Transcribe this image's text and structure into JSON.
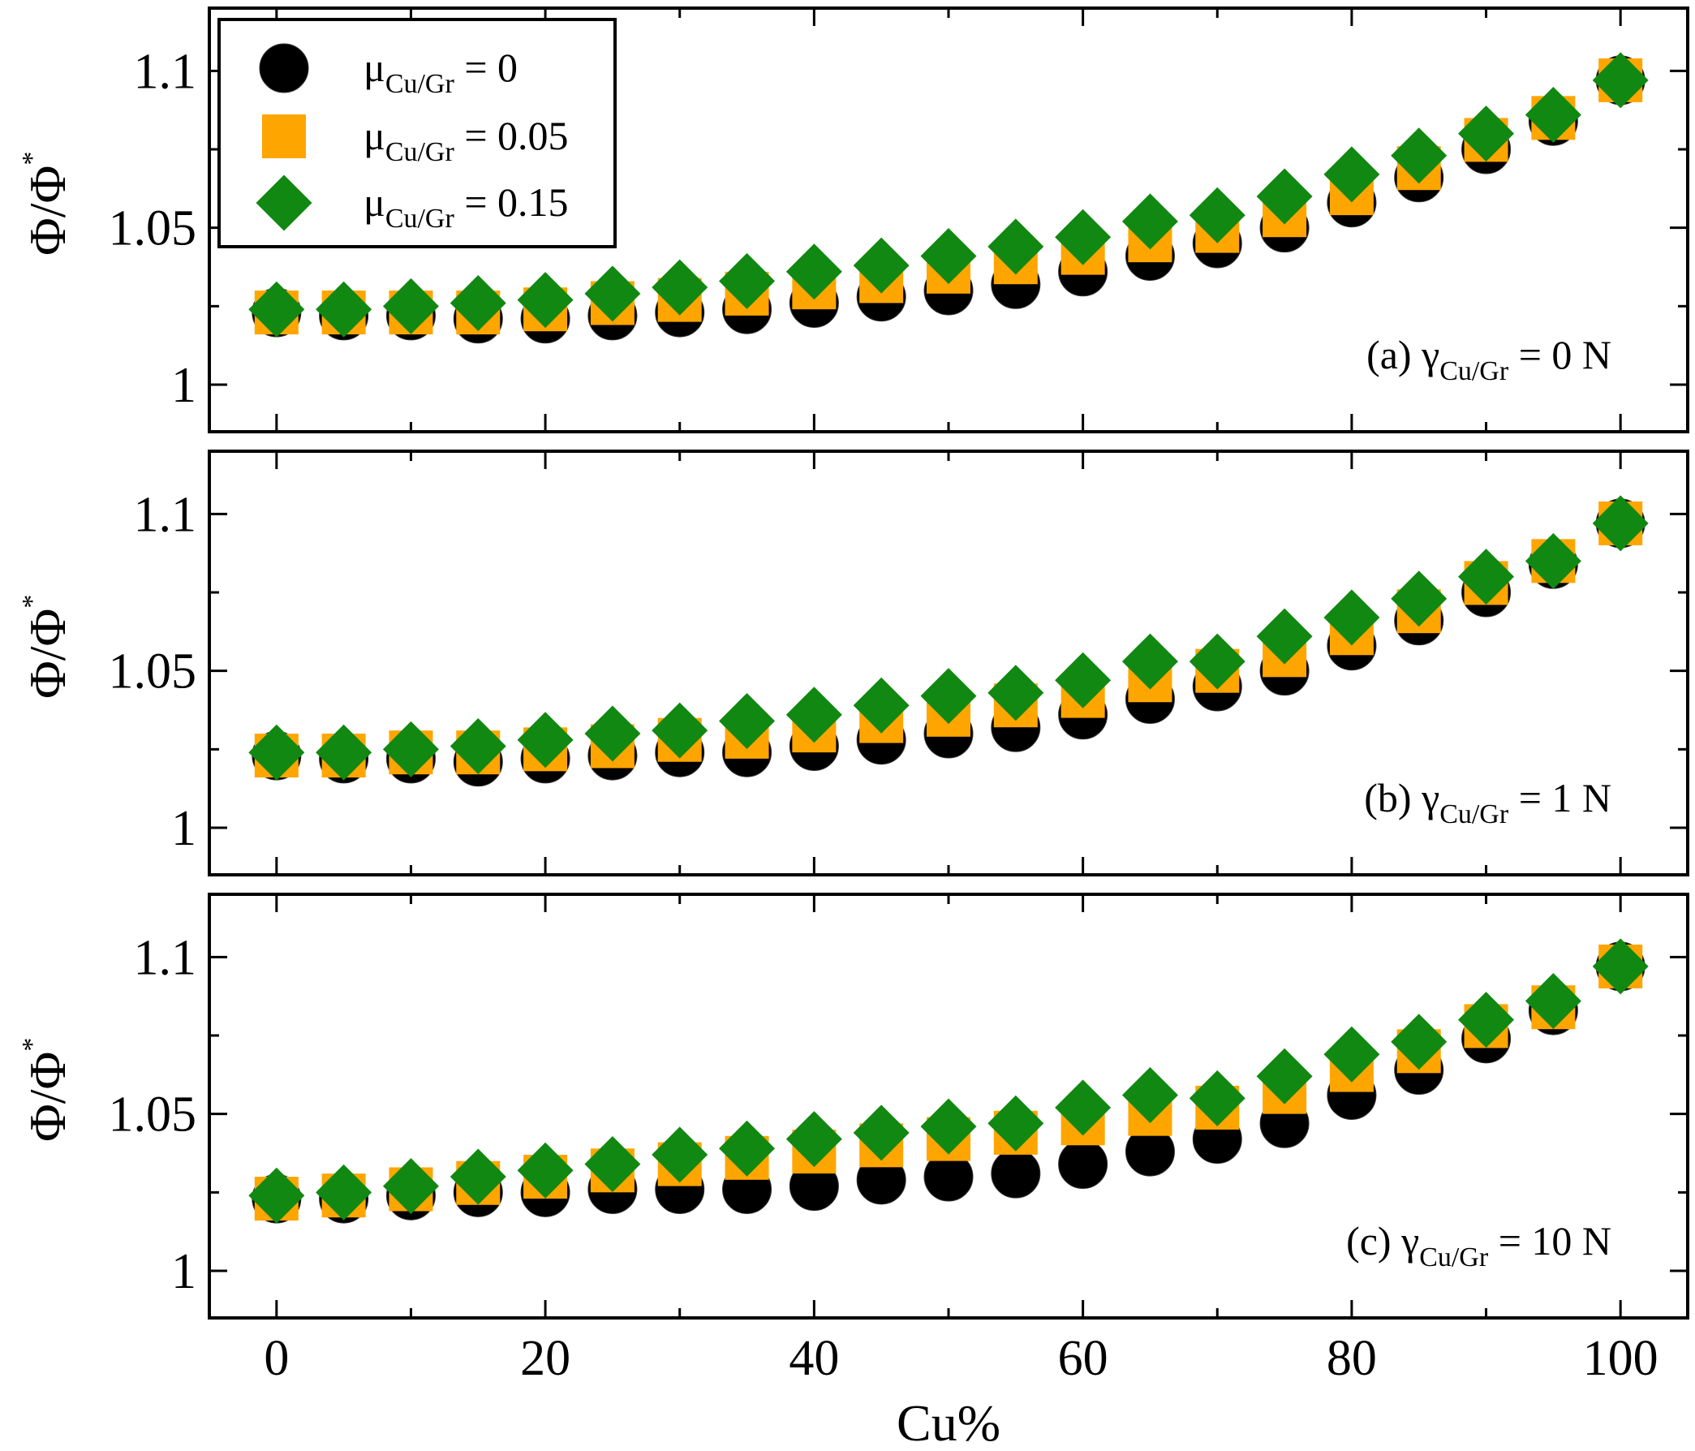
{
  "chart_data": {
    "type": "scatter",
    "x_label": "Cu%",
    "y_label": {
      "main": "Φ/Φ",
      "sup": "*"
    },
    "x_ticks": [
      "0",
      "20",
      "40",
      "60",
      "80",
      "100"
    ],
    "y_ticks": [
      "1",
      "1.05",
      "1.1"
    ],
    "xlim": [
      -5,
      105
    ],
    "ylim": [
      0.985,
      1.12
    ],
    "x": [
      0,
      5,
      10,
      15,
      20,
      25,
      30,
      35,
      40,
      45,
      50,
      55,
      60,
      65,
      70,
      75,
      80,
      85,
      90,
      95,
      100
    ],
    "legend": [
      {
        "label_main": "μ",
        "label_sub": "Cu/Gr",
        "label_rest": " = 0",
        "marker": "circle",
        "color": "#000000"
      },
      {
        "label_main": "μ",
        "label_sub": "Cu/Gr",
        "label_rest": " = 0.05",
        "marker": "square",
        "color": "#FFA500"
      },
      {
        "label_main": "μ",
        "label_sub": "Cu/Gr",
        "label_rest": " = 0.15",
        "marker": "diamond",
        "color": "#118811"
      }
    ],
    "panels": [
      {
        "annotation": {
          "prefix": "(a) γ",
          "sub": "Cu/Gr",
          "rest": " = 0 N"
        },
        "series": [
          {
            "name": "μCu/Gr = 0",
            "values": [
              1.023,
              1.022,
              1.022,
              1.021,
              1.021,
              1.022,
              1.023,
              1.024,
              1.026,
              1.028,
              1.03,
              1.032,
              1.036,
              1.041,
              1.045,
              1.05,
              1.058,
              1.066,
              1.075,
              1.084,
              1.097
            ]
          },
          {
            "name": "μCu/Gr = 0.05",
            "values": [
              1.023,
              1.023,
              1.023,
              1.023,
              1.024,
              1.026,
              1.027,
              1.029,
              1.031,
              1.033,
              1.036,
              1.039,
              1.042,
              1.046,
              1.049,
              1.054,
              1.061,
              1.069,
              1.078,
              1.085,
              1.097
            ]
          },
          {
            "name": "μCu/Gr = 0.15",
            "values": [
              1.024,
              1.024,
              1.025,
              1.026,
              1.027,
              1.029,
              1.031,
              1.033,
              1.036,
              1.038,
              1.041,
              1.044,
              1.047,
              1.052,
              1.054,
              1.06,
              1.067,
              1.073,
              1.08,
              1.086,
              1.097
            ]
          }
        ]
      },
      {
        "annotation": {
          "prefix": "(b) γ",
          "sub": "Cu/Gr",
          "rest": " = 1 N"
        },
        "series": [
          {
            "name": "μCu/Gr = 0",
            "values": [
              1.023,
              1.022,
              1.022,
              1.021,
              1.022,
              1.023,
              1.024,
              1.024,
              1.026,
              1.028,
              1.03,
              1.032,
              1.036,
              1.041,
              1.045,
              1.05,
              1.058,
              1.066,
              1.075,
              1.084,
              1.097
            ]
          },
          {
            "name": "μCu/Gr = 0.05",
            "values": [
              1.023,
              1.023,
              1.024,
              1.024,
              1.025,
              1.026,
              1.028,
              1.029,
              1.031,
              1.034,
              1.036,
              1.039,
              1.042,
              1.047,
              1.05,
              1.055,
              1.062,
              1.069,
              1.078,
              1.085,
              1.097
            ]
          },
          {
            "name": "μCu/Gr = 0.15",
            "values": [
              1.024,
              1.024,
              1.025,
              1.026,
              1.028,
              1.03,
              1.031,
              1.034,
              1.036,
              1.039,
              1.042,
              1.043,
              1.047,
              1.053,
              1.053,
              1.061,
              1.067,
              1.073,
              1.08,
              1.085,
              1.097
            ]
          }
        ]
      },
      {
        "annotation": {
          "prefix": "(c) γ",
          "sub": "Cu/Gr",
          "rest": " = 10 N"
        },
        "series": [
          {
            "name": "μCu/Gr = 0",
            "values": [
              1.023,
              1.023,
              1.024,
              1.025,
              1.025,
              1.026,
              1.026,
              1.026,
              1.027,
              1.029,
              1.03,
              1.031,
              1.034,
              1.038,
              1.042,
              1.047,
              1.056,
              1.064,
              1.074,
              1.083,
              1.097
            ]
          },
          {
            "name": "μCu/Gr = 0.05",
            "values": [
              1.023,
              1.024,
              1.026,
              1.028,
              1.03,
              1.032,
              1.034,
              1.036,
              1.038,
              1.04,
              1.042,
              1.044,
              1.047,
              1.05,
              1.052,
              1.057,
              1.064,
              1.07,
              1.078,
              1.084,
              1.097
            ]
          },
          {
            "name": "μCu/Gr = 0.15",
            "values": [
              1.024,
              1.025,
              1.027,
              1.03,
              1.032,
              1.034,
              1.037,
              1.039,
              1.042,
              1.044,
              1.046,
              1.047,
              1.052,
              1.056,
              1.055,
              1.062,
              1.069,
              1.073,
              1.08,
              1.086,
              1.097
            ]
          }
        ]
      }
    ]
  }
}
